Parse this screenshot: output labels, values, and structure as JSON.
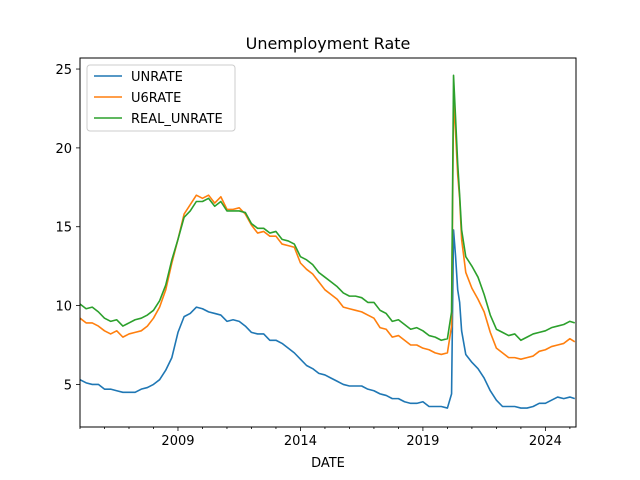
{
  "chart_data": {
    "type": "line",
    "title": "Unemployment Rate",
    "xlabel": "DATE",
    "ylabel": "",
    "xlim": [
      2005.0,
      2025.25
    ],
    "ylim": [
      2.3,
      25.7
    ],
    "x_ticks": [
      2009,
      2014,
      2019,
      2024
    ],
    "y_ticks": [
      5,
      10,
      15,
      20,
      25
    ],
    "grid": false,
    "legend_position": "top-left",
    "series": [
      {
        "name": "UNRATE",
        "color": "#1f77b4",
        "points": [
          [
            2005.0,
            5.3
          ],
          [
            2005.25,
            5.1
          ],
          [
            2005.5,
            5.0
          ],
          [
            2005.75,
            5.0
          ],
          [
            2006.0,
            4.7
          ],
          [
            2006.25,
            4.7
          ],
          [
            2006.5,
            4.6
          ],
          [
            2006.75,
            4.5
          ],
          [
            2007.0,
            4.5
          ],
          [
            2007.25,
            4.5
          ],
          [
            2007.5,
            4.7
          ],
          [
            2007.75,
            4.8
          ],
          [
            2008.0,
            5.0
          ],
          [
            2008.25,
            5.3
          ],
          [
            2008.5,
            5.9
          ],
          [
            2008.75,
            6.7
          ],
          [
            2009.0,
            8.3
          ],
          [
            2009.25,
            9.3
          ],
          [
            2009.5,
            9.5
          ],
          [
            2009.75,
            9.9
          ],
          [
            2010.0,
            9.8
          ],
          [
            2010.25,
            9.6
          ],
          [
            2010.5,
            9.5
          ],
          [
            2010.75,
            9.4
          ],
          [
            2011.0,
            9.0
          ],
          [
            2011.25,
            9.1
          ],
          [
            2011.5,
            9.0
          ],
          [
            2011.75,
            8.7
          ],
          [
            2012.0,
            8.3
          ],
          [
            2012.25,
            8.2
          ],
          [
            2012.5,
            8.2
          ],
          [
            2012.75,
            7.8
          ],
          [
            2013.0,
            7.8
          ],
          [
            2013.25,
            7.6
          ],
          [
            2013.5,
            7.3
          ],
          [
            2013.75,
            7.0
          ],
          [
            2014.0,
            6.6
          ],
          [
            2014.25,
            6.2
          ],
          [
            2014.5,
            6.0
          ],
          [
            2014.75,
            5.7
          ],
          [
            2015.0,
            5.6
          ],
          [
            2015.25,
            5.4
          ],
          [
            2015.5,
            5.2
          ],
          [
            2015.75,
            5.0
          ],
          [
            2016.0,
            4.9
          ],
          [
            2016.25,
            4.9
          ],
          [
            2016.5,
            4.9
          ],
          [
            2016.75,
            4.7
          ],
          [
            2017.0,
            4.6
          ],
          [
            2017.25,
            4.4
          ],
          [
            2017.5,
            4.3
          ],
          [
            2017.75,
            4.1
          ],
          [
            2018.0,
            4.1
          ],
          [
            2018.25,
            3.9
          ],
          [
            2018.5,
            3.8
          ],
          [
            2018.75,
            3.8
          ],
          [
            2019.0,
            3.9
          ],
          [
            2019.25,
            3.6
          ],
          [
            2019.5,
            3.6
          ],
          [
            2019.75,
            3.6
          ],
          [
            2020.0,
            3.5
          ],
          [
            2020.17,
            4.4
          ],
          [
            2020.25,
            14.8
          ],
          [
            2020.33,
            13.2
          ],
          [
            2020.42,
            11.0
          ],
          [
            2020.5,
            10.2
          ],
          [
            2020.58,
            8.4
          ],
          [
            2020.75,
            6.9
          ],
          [
            2021.0,
            6.4
          ],
          [
            2021.25,
            6.0
          ],
          [
            2021.5,
            5.4
          ],
          [
            2021.75,
            4.6
          ],
          [
            2022.0,
            4.0
          ],
          [
            2022.25,
            3.6
          ],
          [
            2022.5,
            3.6
          ],
          [
            2022.75,
            3.6
          ],
          [
            2023.0,
            3.5
          ],
          [
            2023.25,
            3.5
          ],
          [
            2023.5,
            3.6
          ],
          [
            2023.75,
            3.8
          ],
          [
            2024.0,
            3.8
          ],
          [
            2024.25,
            4.0
          ],
          [
            2024.5,
            4.2
          ],
          [
            2024.75,
            4.1
          ],
          [
            2025.0,
            4.2
          ],
          [
            2025.2,
            4.1
          ]
        ]
      },
      {
        "name": "U6RATE",
        "color": "#ff7f0e",
        "points": [
          [
            2005.0,
            9.2
          ],
          [
            2005.25,
            8.9
          ],
          [
            2005.5,
            8.9
          ],
          [
            2005.75,
            8.7
          ],
          [
            2006.0,
            8.4
          ],
          [
            2006.25,
            8.2
          ],
          [
            2006.5,
            8.4
          ],
          [
            2006.75,
            8.0
          ],
          [
            2007.0,
            8.2
          ],
          [
            2007.25,
            8.3
          ],
          [
            2007.5,
            8.4
          ],
          [
            2007.75,
            8.7
          ],
          [
            2008.0,
            9.2
          ],
          [
            2008.25,
            9.9
          ],
          [
            2008.5,
            11.0
          ],
          [
            2008.75,
            12.7
          ],
          [
            2009.0,
            14.2
          ],
          [
            2009.25,
            15.8
          ],
          [
            2009.5,
            16.4
          ],
          [
            2009.75,
            17.0
          ],
          [
            2010.0,
            16.8
          ],
          [
            2010.25,
            17.0
          ],
          [
            2010.5,
            16.5
          ],
          [
            2010.75,
            16.9
          ],
          [
            2011.0,
            16.1
          ],
          [
            2011.25,
            16.1
          ],
          [
            2011.5,
            16.2
          ],
          [
            2011.75,
            15.8
          ],
          [
            2012.0,
            15.1
          ],
          [
            2012.25,
            14.6
          ],
          [
            2012.5,
            14.7
          ],
          [
            2012.75,
            14.4
          ],
          [
            2013.0,
            14.4
          ],
          [
            2013.25,
            13.9
          ],
          [
            2013.5,
            13.8
          ],
          [
            2013.75,
            13.7
          ],
          [
            2014.0,
            12.7
          ],
          [
            2014.25,
            12.3
          ],
          [
            2014.5,
            12.0
          ],
          [
            2014.75,
            11.5
          ],
          [
            2015.0,
            11.0
          ],
          [
            2015.25,
            10.7
          ],
          [
            2015.5,
            10.4
          ],
          [
            2015.75,
            9.9
          ],
          [
            2016.0,
            9.8
          ],
          [
            2016.25,
            9.7
          ],
          [
            2016.5,
            9.6
          ],
          [
            2016.75,
            9.4
          ],
          [
            2017.0,
            9.2
          ],
          [
            2017.25,
            8.6
          ],
          [
            2017.5,
            8.5
          ],
          [
            2017.75,
            8.0
          ],
          [
            2018.0,
            8.1
          ],
          [
            2018.25,
            7.8
          ],
          [
            2018.5,
            7.5
          ],
          [
            2018.75,
            7.5
          ],
          [
            2019.0,
            7.3
          ],
          [
            2019.25,
            7.2
          ],
          [
            2019.5,
            7.0
          ],
          [
            2019.75,
            6.9
          ],
          [
            2020.0,
            7.0
          ],
          [
            2020.17,
            8.7
          ],
          [
            2020.25,
            22.9
          ],
          [
            2020.33,
            21.1
          ],
          [
            2020.42,
            18.3
          ],
          [
            2020.5,
            16.8
          ],
          [
            2020.58,
            14.2
          ],
          [
            2020.75,
            12.1
          ],
          [
            2021.0,
            11.1
          ],
          [
            2021.25,
            10.4
          ],
          [
            2021.5,
            9.6
          ],
          [
            2021.75,
            8.3
          ],
          [
            2022.0,
            7.3
          ],
          [
            2022.25,
            7.0
          ],
          [
            2022.5,
            6.7
          ],
          [
            2022.75,
            6.7
          ],
          [
            2023.0,
            6.6
          ],
          [
            2023.25,
            6.7
          ],
          [
            2023.5,
            6.8
          ],
          [
            2023.75,
            7.1
          ],
          [
            2024.0,
            7.2
          ],
          [
            2024.25,
            7.4
          ],
          [
            2024.5,
            7.5
          ],
          [
            2024.75,
            7.6
          ],
          [
            2025.0,
            7.9
          ],
          [
            2025.2,
            7.7
          ]
        ]
      },
      {
        "name": "REAL_UNRATE",
        "color": "#2ca02c",
        "points": [
          [
            2005.0,
            10.1
          ],
          [
            2005.25,
            9.8
          ],
          [
            2005.5,
            9.9
          ],
          [
            2005.75,
            9.6
          ],
          [
            2006.0,
            9.2
          ],
          [
            2006.25,
            9.0
          ],
          [
            2006.5,
            9.1
          ],
          [
            2006.75,
            8.7
          ],
          [
            2007.0,
            8.9
          ],
          [
            2007.25,
            9.1
          ],
          [
            2007.5,
            9.2
          ],
          [
            2007.75,
            9.4
          ],
          [
            2008.0,
            9.7
          ],
          [
            2008.25,
            10.3
          ],
          [
            2008.5,
            11.3
          ],
          [
            2008.75,
            12.9
          ],
          [
            2009.0,
            14.2
          ],
          [
            2009.25,
            15.6
          ],
          [
            2009.5,
            16.0
          ],
          [
            2009.75,
            16.6
          ],
          [
            2010.0,
            16.6
          ],
          [
            2010.25,
            16.8
          ],
          [
            2010.5,
            16.3
          ],
          [
            2010.75,
            16.6
          ],
          [
            2011.0,
            16.0
          ],
          [
            2011.25,
            16.0
          ],
          [
            2011.5,
            16.0
          ],
          [
            2011.75,
            15.9
          ],
          [
            2012.0,
            15.2
          ],
          [
            2012.25,
            14.9
          ],
          [
            2012.5,
            14.9
          ],
          [
            2012.75,
            14.6
          ],
          [
            2013.0,
            14.7
          ],
          [
            2013.25,
            14.2
          ],
          [
            2013.5,
            14.1
          ],
          [
            2013.75,
            13.9
          ],
          [
            2014.0,
            13.1
          ],
          [
            2014.25,
            12.9
          ],
          [
            2014.5,
            12.6
          ],
          [
            2014.75,
            12.1
          ],
          [
            2015.0,
            11.8
          ],
          [
            2015.25,
            11.5
          ],
          [
            2015.5,
            11.2
          ],
          [
            2015.75,
            10.8
          ],
          [
            2016.0,
            10.6
          ],
          [
            2016.25,
            10.6
          ],
          [
            2016.5,
            10.5
          ],
          [
            2016.75,
            10.2
          ],
          [
            2017.0,
            10.2
          ],
          [
            2017.25,
            9.7
          ],
          [
            2017.5,
            9.5
          ],
          [
            2017.75,
            9.0
          ],
          [
            2018.0,
            9.1
          ],
          [
            2018.25,
            8.8
          ],
          [
            2018.5,
            8.5
          ],
          [
            2018.75,
            8.6
          ],
          [
            2019.0,
            8.4
          ],
          [
            2019.25,
            8.1
          ],
          [
            2019.5,
            8.0
          ],
          [
            2019.75,
            7.8
          ],
          [
            2020.0,
            7.9
          ],
          [
            2020.17,
            9.6
          ],
          [
            2020.25,
            24.6
          ],
          [
            2020.33,
            22.0
          ],
          [
            2020.42,
            19.0
          ],
          [
            2020.5,
            17.0
          ],
          [
            2020.58,
            14.8
          ],
          [
            2020.75,
            13.1
          ],
          [
            2021.0,
            12.5
          ],
          [
            2021.25,
            11.8
          ],
          [
            2021.5,
            10.7
          ],
          [
            2021.75,
            9.4
          ],
          [
            2022.0,
            8.5
          ],
          [
            2022.25,
            8.3
          ],
          [
            2022.5,
            8.1
          ],
          [
            2022.75,
            8.2
          ],
          [
            2023.0,
            7.8
          ],
          [
            2023.25,
            8.0
          ],
          [
            2023.5,
            8.2
          ],
          [
            2023.75,
            8.3
          ],
          [
            2024.0,
            8.4
          ],
          [
            2024.25,
            8.6
          ],
          [
            2024.5,
            8.7
          ],
          [
            2024.75,
            8.8
          ],
          [
            2025.0,
            9.0
          ],
          [
            2025.2,
            8.9
          ]
        ]
      }
    ]
  }
}
